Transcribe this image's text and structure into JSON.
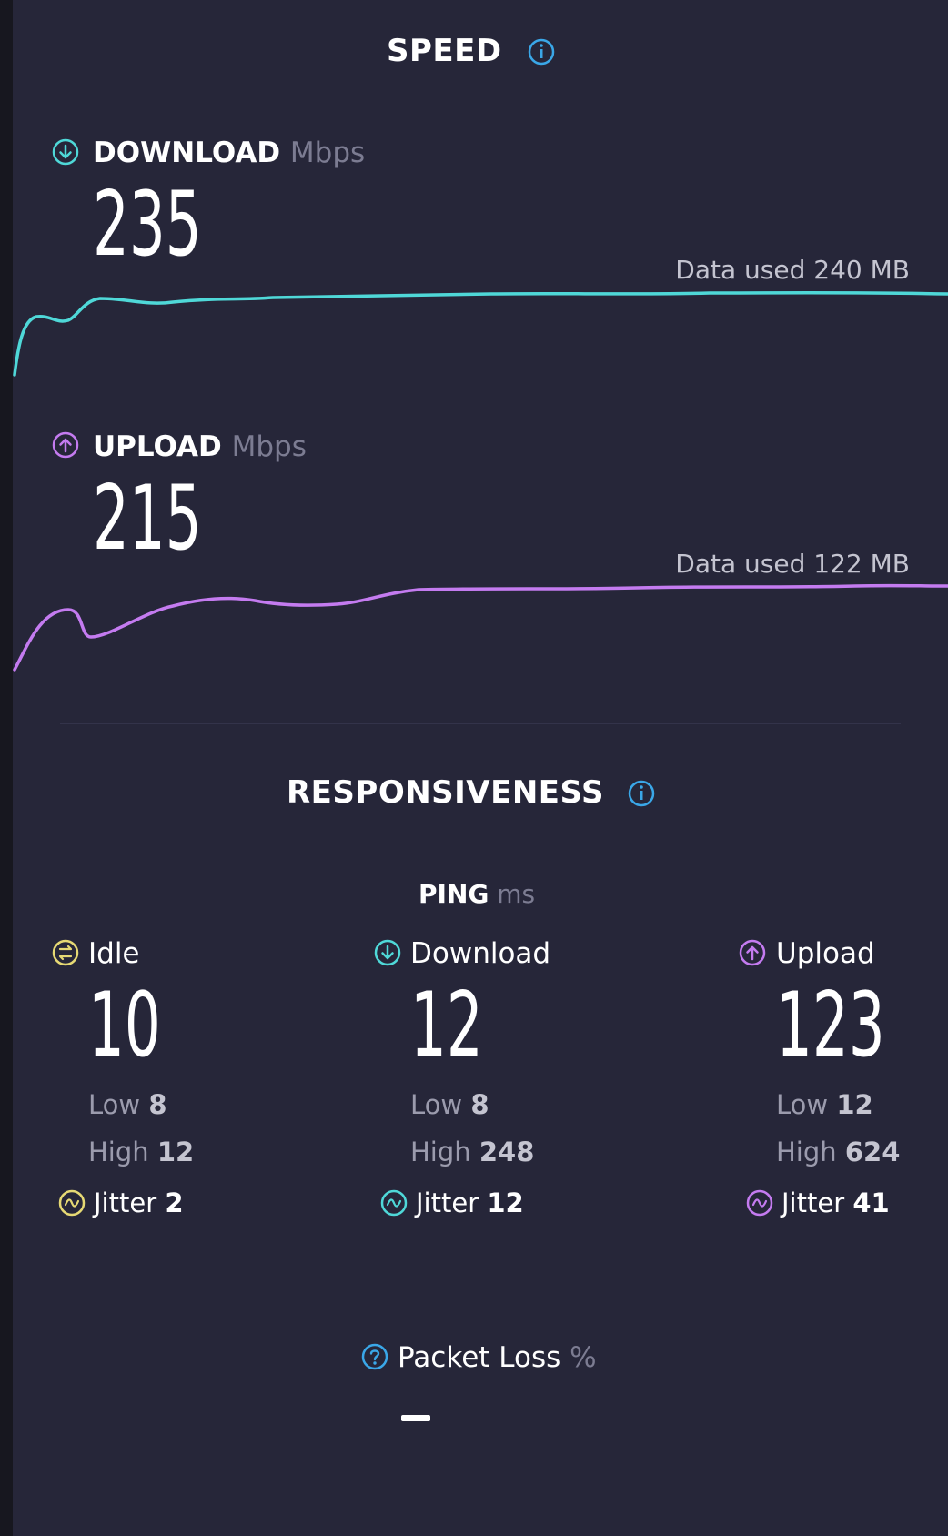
{
  "colors": {
    "background": "#262639",
    "download": "#4fd8d8",
    "upload": "#c47bf0",
    "idle": "#e6d974",
    "info": "#3aa7e8"
  },
  "speed": {
    "title": "SPEED",
    "info_icon": "info-icon",
    "download": {
      "label": "DOWNLOAD",
      "unit": "Mbps",
      "value": "235",
      "data_used": "Data used 240 MB",
      "icon": "download-arrow-icon"
    },
    "upload": {
      "label": "UPLOAD",
      "unit": "Mbps",
      "value": "215",
      "data_used": "Data used 122 MB",
      "icon": "upload-arrow-icon"
    }
  },
  "responsiveness": {
    "title": "RESPONSIVENESS",
    "ping": {
      "label": "PING",
      "unit": "ms"
    },
    "columns": [
      {
        "label": "Idle",
        "value": "10",
        "low_label": "Low",
        "low": "8",
        "high_label": "High",
        "high": "12",
        "jitter_label": "Jitter",
        "jitter": "2",
        "icon": "idle-icon"
      },
      {
        "label": "Download",
        "value": "12",
        "low_label": "Low",
        "low": "8",
        "high_label": "High",
        "high": "248",
        "jitter_label": "Jitter",
        "jitter": "12",
        "icon": "download-arrow-icon"
      },
      {
        "label": "Upload",
        "value": "123",
        "low_label": "Low",
        "low": "12",
        "high_label": "High",
        "high": "624",
        "jitter_label": "Jitter",
        "jitter": "41",
        "icon": "upload-arrow-icon"
      }
    ]
  },
  "packet_loss": {
    "label": "Packet Loss",
    "unit": "%",
    "value": "–",
    "icon": "question-icon"
  }
}
